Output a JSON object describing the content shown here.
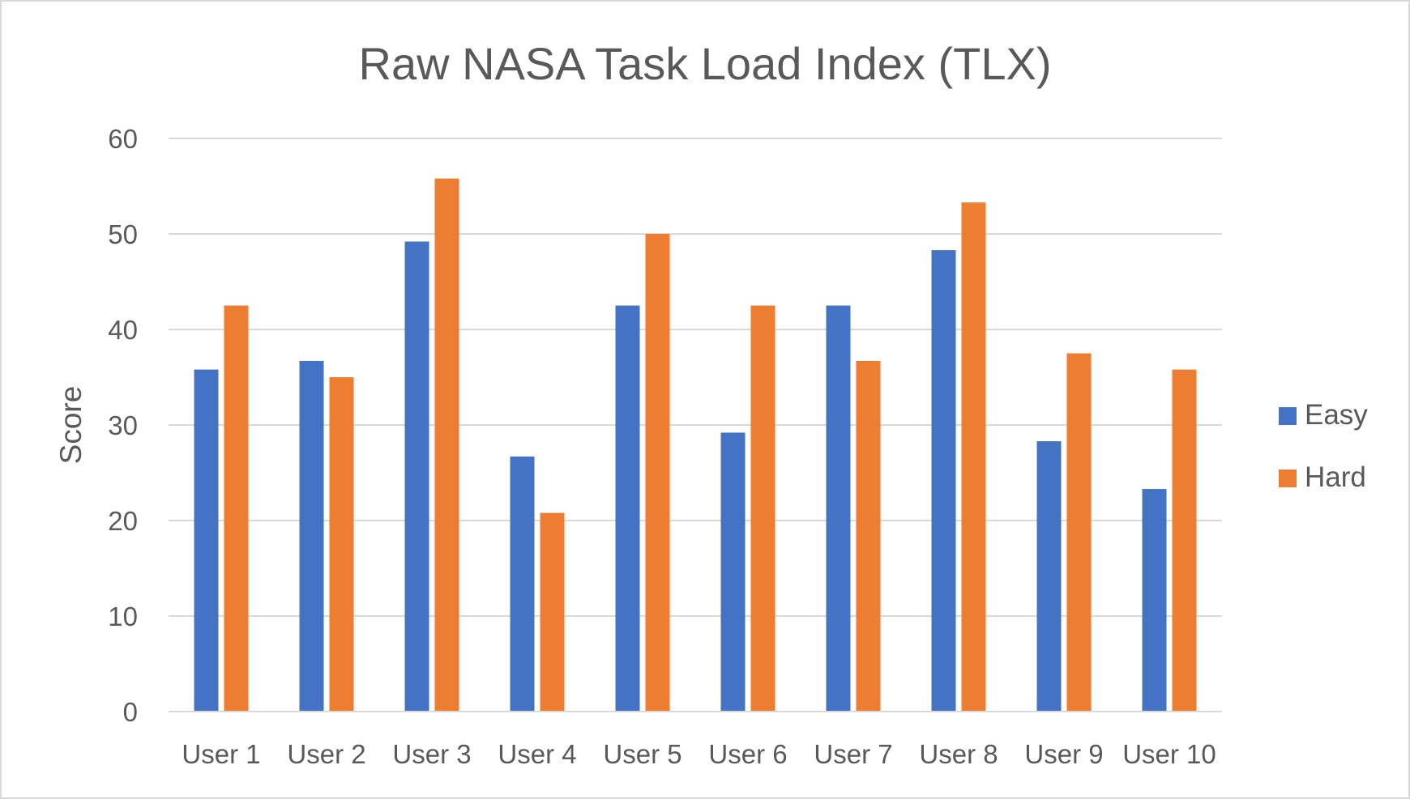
{
  "chart_data": {
    "type": "bar",
    "title": "Raw NASA Task Load Index (TLX)",
    "ylabel": "Score",
    "xlabel": "",
    "ylim": [
      0,
      60
    ],
    "yticks": [
      0,
      10,
      20,
      30,
      40,
      50,
      60
    ],
    "grid": true,
    "legend": "right",
    "categories": [
      "User 1",
      "User 2",
      "User 3",
      "User 4",
      "User 5",
      "User 6",
      "User 7",
      "User 8",
      "User 9",
      "User 10"
    ],
    "series": [
      {
        "name": "Easy",
        "color": "#4472c4",
        "values": [
          35.8,
          36.7,
          49.2,
          26.7,
          42.5,
          29.2,
          42.5,
          48.3,
          28.3,
          23.3
        ]
      },
      {
        "name": "Hard",
        "color": "#ed7d31",
        "values": [
          42.5,
          35.0,
          55.8,
          20.8,
          50.0,
          42.5,
          36.7,
          53.3,
          37.5,
          35.8
        ]
      }
    ]
  }
}
